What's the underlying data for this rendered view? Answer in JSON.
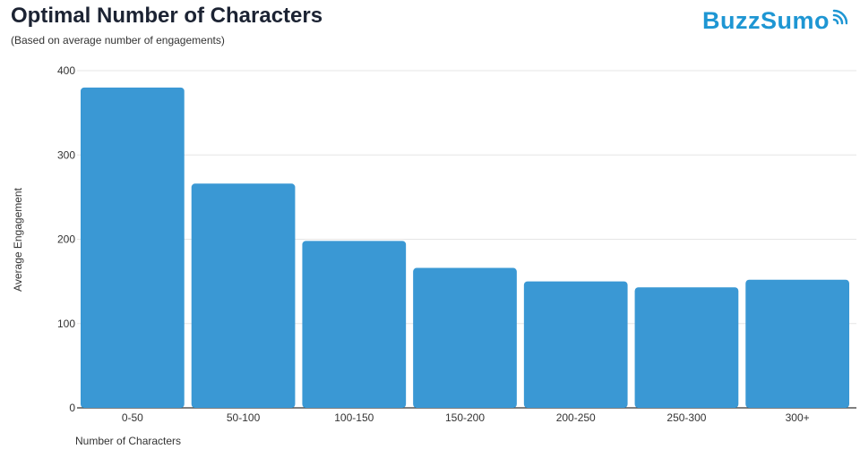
{
  "header": {
    "title": "Optimal Number of Characters",
    "subtitle": "(Based on average number of engagements)",
    "logo_text": "BuzzSumo"
  },
  "colors": {
    "bar": "#3a98d4",
    "grid": "#e6e6e6",
    "axis": "#333333",
    "brand": "#1e96d3"
  },
  "chart_data": {
    "type": "bar",
    "title": "Optimal Number of Characters",
    "subtitle": "(Based on average number of engagements)",
    "xlabel": "Number of Characters",
    "ylabel": "Average Engagement",
    "categories": [
      "0-50",
      "50-100",
      "100-150",
      "150-200",
      "200-250",
      "250-300",
      "300+"
    ],
    "values": [
      380,
      266,
      198,
      166,
      150,
      143,
      152
    ],
    "ylim": [
      0,
      400
    ],
    "yticks": [
      0,
      100,
      200,
      300,
      400
    ],
    "grid": true,
    "legend": "none"
  }
}
